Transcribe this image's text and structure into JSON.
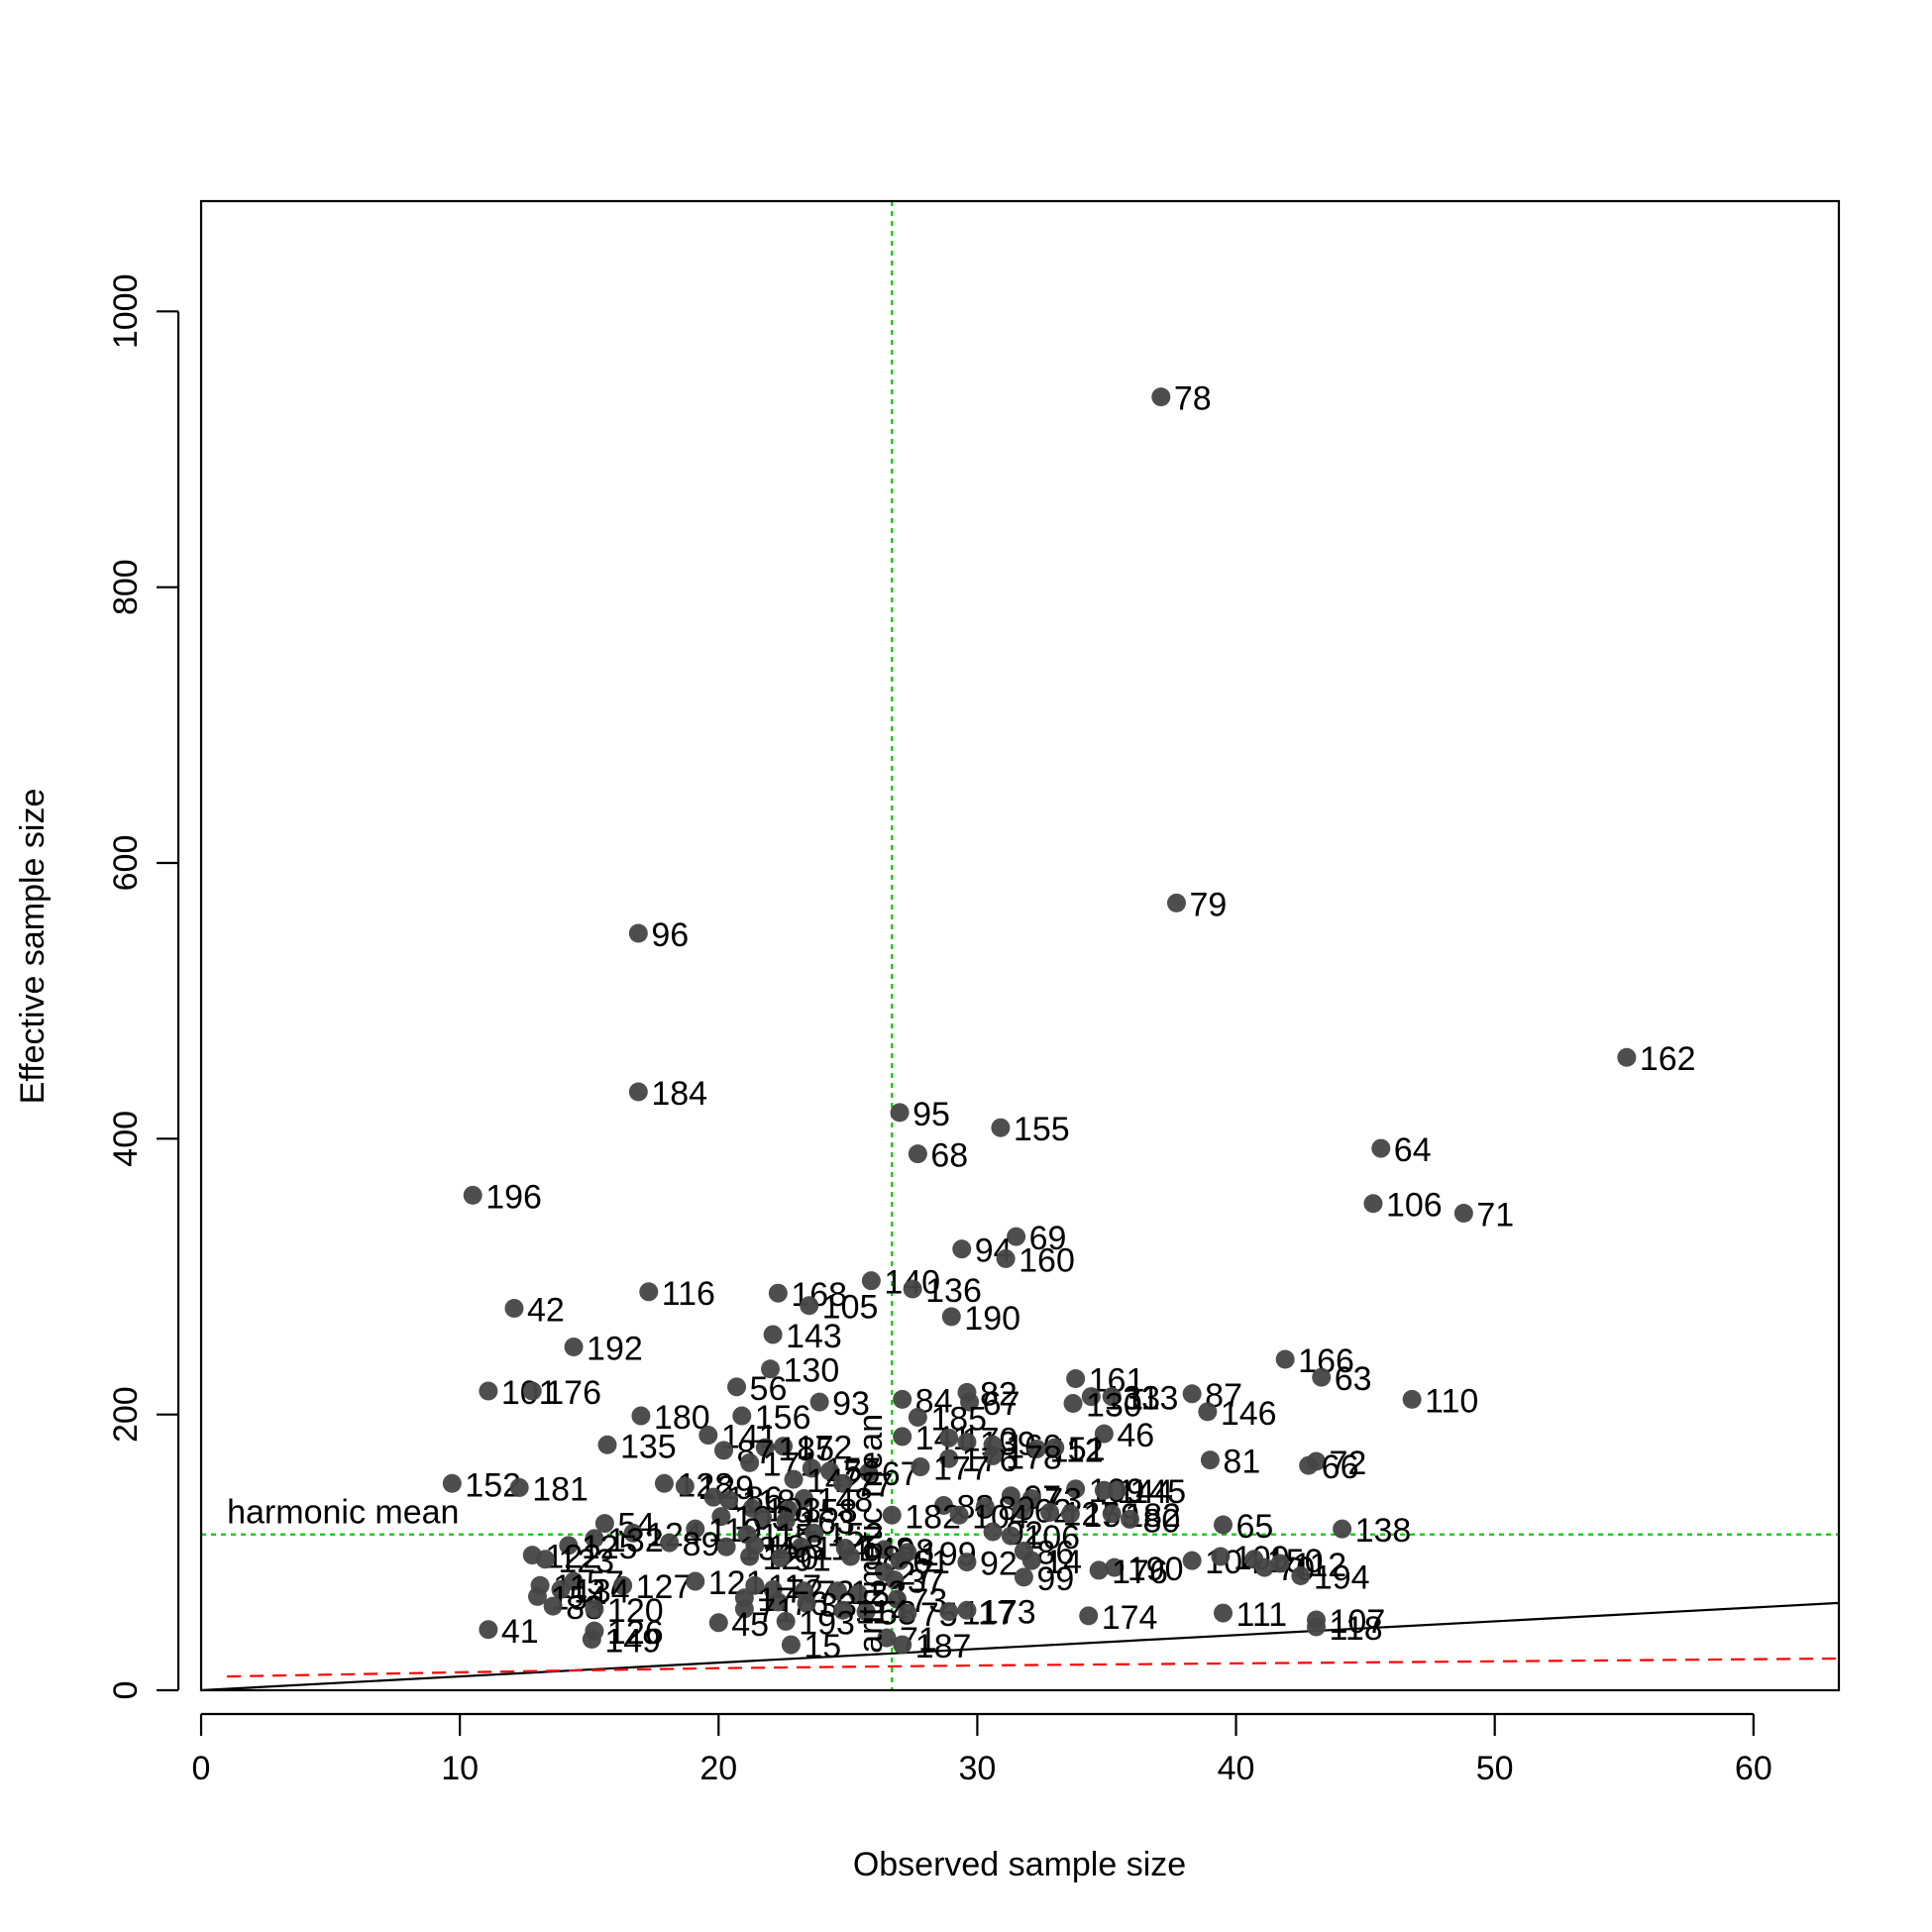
{
  "chart_data": {
    "type": "scatter",
    "title": "",
    "xlabel": "Observed sample size",
    "ylabel": "Effective sample size",
    "xlim": [
      0,
      63.3
    ],
    "ylim": [
      0,
      1080
    ],
    "x_ticks": [
      0,
      10,
      20,
      30,
      40,
      50,
      60
    ],
    "y_ticks": [
      0,
      200,
      400,
      600,
      800,
      1000
    ],
    "grid": false,
    "colors": {
      "points": "#444444",
      "reference": "#00cc00",
      "dashed_curve": "#ff0000",
      "solid_line": "#000000"
    },
    "reference_lines": {
      "arithmetic_mean": {
        "label": "arithmetic mean",
        "x": 26.7
      },
      "harmonic_mean": {
        "label": "harmonic mean",
        "y": 113
      }
    },
    "solid_line": {
      "x": [
        0,
        63.3
      ],
      "y": [
        0,
        63.3
      ]
    },
    "dashed_curve": {
      "x": [
        1,
        10,
        20,
        30,
        40,
        50,
        63.3
      ],
      "y": [
        10,
        13,
        16,
        18,
        19.5,
        21,
        23
      ]
    },
    "points": [
      {
        "x": 37.1,
        "y": 938,
        "label": "78"
      },
      {
        "x": 37.7,
        "y": 571,
        "label": "79"
      },
      {
        "x": 16.9,
        "y": 549,
        "label": "96"
      },
      {
        "x": 55.1,
        "y": 459,
        "label": "162"
      },
      {
        "x": 16.9,
        "y": 434,
        "label": "184"
      },
      {
        "x": 27.0,
        "y": 419,
        "label": "95"
      },
      {
        "x": 30.9,
        "y": 408,
        "label": "155"
      },
      {
        "x": 45.6,
        "y": 393,
        "label": "64"
      },
      {
        "x": 27.7,
        "y": 389,
        "label": "68"
      },
      {
        "x": 10.5,
        "y": 359,
        "label": "196"
      },
      {
        "x": 45.3,
        "y": 353,
        "label": "106"
      },
      {
        "x": 48.8,
        "y": 346,
        "label": "71"
      },
      {
        "x": 31.5,
        "y": 329,
        "label": "69"
      },
      {
        "x": 29.4,
        "y": 320,
        "label": "94"
      },
      {
        "x": 31.1,
        "y": 313,
        "label": "160"
      },
      {
        "x": 25.9,
        "y": 297,
        "label": "140"
      },
      {
        "x": 27.5,
        "y": 291,
        "label": "136"
      },
      {
        "x": 17.3,
        "y": 289,
        "label": "116"
      },
      {
        "x": 22.3,
        "y": 288,
        "label": "168"
      },
      {
        "x": 23.5,
        "y": 279,
        "label": "105"
      },
      {
        "x": 12.1,
        "y": 277,
        "label": "42"
      },
      {
        "x": 29.0,
        "y": 271,
        "label": "190"
      },
      {
        "x": 22.1,
        "y": 258,
        "label": "143"
      },
      {
        "x": 14.4,
        "y": 249,
        "label": "192"
      },
      {
        "x": 41.9,
        "y": 240,
        "label": "166"
      },
      {
        "x": 22.0,
        "y": 233,
        "label": "130"
      },
      {
        "x": 43.3,
        "y": 227,
        "label": "63"
      },
      {
        "x": 33.8,
        "y": 226,
        "label": "161"
      },
      {
        "x": 20.7,
        "y": 220,
        "label": "56"
      },
      {
        "x": 11.1,
        "y": 217,
        "label": "101"
      },
      {
        "x": 12.8,
        "y": 217,
        "label": "176"
      },
      {
        "x": 29.6,
        "y": 216,
        "label": "82"
      },
      {
        "x": 38.3,
        "y": 215,
        "label": "87"
      },
      {
        "x": 34.4,
        "y": 213,
        "label": "133"
      },
      {
        "x": 35.2,
        "y": 213,
        "label": "113"
      },
      {
        "x": 46.8,
        "y": 211,
        "label": "110"
      },
      {
        "x": 27.1,
        "y": 211,
        "label": "84"
      },
      {
        "x": 29.7,
        "y": 209,
        "label": "67"
      },
      {
        "x": 23.9,
        "y": 209,
        "label": "93"
      },
      {
        "x": 33.7,
        "y": 208,
        "label": "130"
      },
      {
        "x": 38.9,
        "y": 202,
        "label": "146"
      },
      {
        "x": 17.0,
        "y": 199,
        "label": "180"
      },
      {
        "x": 20.9,
        "y": 199,
        "label": "156"
      },
      {
        "x": 27.7,
        "y": 198,
        "label": "185"
      },
      {
        "x": 34.9,
        "y": 186,
        "label": "46"
      },
      {
        "x": 19.6,
        "y": 185,
        "label": "141"
      },
      {
        "x": 27.1,
        "y": 184,
        "label": "141"
      },
      {
        "x": 28.9,
        "y": 183,
        "label": "170"
      },
      {
        "x": 29.6,
        "y": 180,
        "label": "139"
      },
      {
        "x": 30.6,
        "y": 178,
        "label": "160"
      },
      {
        "x": 15.7,
        "y": 178,
        "label": "135"
      },
      {
        "x": 22.5,
        "y": 177,
        "label": "172"
      },
      {
        "x": 21.8,
        "y": 176,
        "label": "185"
      },
      {
        "x": 32.3,
        "y": 175,
        "label": "112"
      },
      {
        "x": 33.0,
        "y": 176,
        "label": "51"
      },
      {
        "x": 20.2,
        "y": 174,
        "label": "87"
      },
      {
        "x": 39.0,
        "y": 167,
        "label": "81"
      },
      {
        "x": 43.1,
        "y": 166,
        "label": "72"
      },
      {
        "x": 42.8,
        "y": 163,
        "label": "66"
      },
      {
        "x": 28.9,
        "y": 168,
        "label": "176"
      },
      {
        "x": 30.6,
        "y": 170,
        "label": "178"
      },
      {
        "x": 21.2,
        "y": 165,
        "label": "171"
      },
      {
        "x": 23.6,
        "y": 161,
        "label": "157"
      },
      {
        "x": 24.3,
        "y": 159,
        "label": "76"
      },
      {
        "x": 25.8,
        "y": 158,
        "label": "67"
      },
      {
        "x": 27.8,
        "y": 162,
        "label": "177"
      },
      {
        "x": 9.7,
        "y": 150,
        "label": "152"
      },
      {
        "x": 12.3,
        "y": 147,
        "label": "181"
      },
      {
        "x": 17.9,
        "y": 150,
        "label": "128"
      },
      {
        "x": 18.7,
        "y": 148,
        "label": "129"
      },
      {
        "x": 22.9,
        "y": 153,
        "label": "142"
      },
      {
        "x": 24.8,
        "y": 150,
        "label": "77"
      },
      {
        "x": 33.8,
        "y": 146,
        "label": "109"
      },
      {
        "x": 34.9,
        "y": 145,
        "label": "144"
      },
      {
        "x": 35.4,
        "y": 145,
        "label": "145"
      },
      {
        "x": 31.3,
        "y": 141,
        "label": "97"
      },
      {
        "x": 32.1,
        "y": 139,
        "label": "73"
      },
      {
        "x": 19.8,
        "y": 140,
        "label": "186"
      },
      {
        "x": 20.4,
        "y": 138,
        "label": "118"
      },
      {
        "x": 23.3,
        "y": 139,
        "label": "148"
      },
      {
        "x": 28.7,
        "y": 134,
        "label": "88"
      },
      {
        "x": 30.3,
        "y": 133,
        "label": "89"
      },
      {
        "x": 21.3,
        "y": 132,
        "label": "103"
      },
      {
        "x": 22.7,
        "y": 131,
        "label": "158"
      },
      {
        "x": 31.7,
        "y": 131,
        "label": "62"
      },
      {
        "x": 32.8,
        "y": 129,
        "label": "127"
      },
      {
        "x": 33.6,
        "y": 128,
        "label": "159"
      },
      {
        "x": 35.2,
        "y": 128,
        "label": "182"
      },
      {
        "x": 35.9,
        "y": 124,
        "label": "80"
      },
      {
        "x": 26.7,
        "y": 127,
        "label": "182"
      },
      {
        "x": 29.3,
        "y": 127,
        "label": "104"
      },
      {
        "x": 20.1,
        "y": 126,
        "label": "103"
      },
      {
        "x": 21.7,
        "y": 125,
        "label": "29"
      },
      {
        "x": 22.6,
        "y": 123,
        "label": "163"
      },
      {
        "x": 39.5,
        "y": 120,
        "label": "65"
      },
      {
        "x": 44.1,
        "y": 117,
        "label": "138"
      },
      {
        "x": 15.6,
        "y": 121,
        "label": "54"
      },
      {
        "x": 16.7,
        "y": 114,
        "label": "124"
      },
      {
        "x": 19.1,
        "y": 117,
        "label": "119"
      },
      {
        "x": 21.1,
        "y": 113,
        "label": "115"
      },
      {
        "x": 23.7,
        "y": 114,
        "label": "152"
      },
      {
        "x": 30.6,
        "y": 115,
        "label": "92"
      },
      {
        "x": 31.3,
        "y": 112,
        "label": "106"
      },
      {
        "x": 15.2,
        "y": 110,
        "label": "132"
      },
      {
        "x": 18.1,
        "y": 107,
        "label": "89"
      },
      {
        "x": 14.2,
        "y": 105,
        "label": "125"
      },
      {
        "x": 20.3,
        "y": 104,
        "label": "134"
      },
      {
        "x": 21.4,
        "y": 105,
        "label": "188"
      },
      {
        "x": 23.2,
        "y": 104,
        "label": "114"
      },
      {
        "x": 24.9,
        "y": 103,
        "label": "148"
      },
      {
        "x": 26.4,
        "y": 102,
        "label": "98"
      },
      {
        "x": 27.3,
        "y": 100,
        "label": "199"
      },
      {
        "x": 31.8,
        "y": 101,
        "label": "86"
      },
      {
        "x": 12.8,
        "y": 98,
        "label": "122"
      },
      {
        "x": 13.3,
        "y": 95,
        "label": "123"
      },
      {
        "x": 21.2,
        "y": 97,
        "label": "120"
      },
      {
        "x": 22.4,
        "y": 96,
        "label": "91"
      },
      {
        "x": 25.1,
        "y": 97,
        "label": "98"
      },
      {
        "x": 27.0,
        "y": 94,
        "label": "61"
      },
      {
        "x": 29.6,
        "y": 93,
        "label": "92"
      },
      {
        "x": 32.1,
        "y": 94,
        "label": "14"
      },
      {
        "x": 35.3,
        "y": 89,
        "label": "190"
      },
      {
        "x": 38.3,
        "y": 94,
        "label": "104"
      },
      {
        "x": 39.4,
        "y": 97,
        "label": "109"
      },
      {
        "x": 40.7,
        "y": 95,
        "label": "150"
      },
      {
        "x": 41.1,
        "y": 89,
        "label": "70"
      },
      {
        "x": 41.7,
        "y": 92,
        "label": "112"
      },
      {
        "x": 42.5,
        "y": 83,
        "label": "194"
      },
      {
        "x": 31.8,
        "y": 82,
        "label": "99"
      },
      {
        "x": 34.7,
        "y": 87,
        "label": "176"
      },
      {
        "x": 26.4,
        "y": 86,
        "label": "27"
      },
      {
        "x": 26.8,
        "y": 80,
        "label": "37"
      },
      {
        "x": 14.4,
        "y": 79,
        "label": "57"
      },
      {
        "x": 16.3,
        "y": 76,
        "label": "127"
      },
      {
        "x": 19.1,
        "y": 79,
        "label": "121"
      },
      {
        "x": 13.1,
        "y": 76,
        "label": "11"
      },
      {
        "x": 13.9,
        "y": 73,
        "label": "134"
      },
      {
        "x": 21.4,
        "y": 76,
        "label": "117"
      },
      {
        "x": 22.1,
        "y": 73,
        "label": "72"
      },
      {
        "x": 23.3,
        "y": 72,
        "label": "72"
      },
      {
        "x": 24.6,
        "y": 72,
        "label": "123"
      },
      {
        "x": 25.4,
        "y": 70,
        "label": "51"
      },
      {
        "x": 21.0,
        "y": 67,
        "label": "17"
      },
      {
        "x": 22.3,
        "y": 64,
        "label": "76"
      },
      {
        "x": 23.4,
        "y": 63,
        "label": "33"
      },
      {
        "x": 26.9,
        "y": 66,
        "label": "73"
      },
      {
        "x": 13.0,
        "y": 68,
        "label": "154"
      },
      {
        "x": 13.6,
        "y": 61,
        "label": "83"
      },
      {
        "x": 15.2,
        "y": 59,
        "label": "120"
      },
      {
        "x": 21.0,
        "y": 59,
        "label": "71"
      },
      {
        "x": 24.8,
        "y": 58,
        "label": "114"
      },
      {
        "x": 25.7,
        "y": 57,
        "label": "58"
      },
      {
        "x": 27.3,
        "y": 56,
        "label": "75"
      },
      {
        "x": 28.9,
        "y": 57,
        "label": "117"
      },
      {
        "x": 29.6,
        "y": 58,
        "label": "173"
      },
      {
        "x": 34.3,
        "y": 54,
        "label": "174"
      },
      {
        "x": 39.5,
        "y": 56,
        "label": "111"
      },
      {
        "x": 43.1,
        "y": 51,
        "label": "107"
      },
      {
        "x": 43.1,
        "y": 46,
        "label": "118"
      },
      {
        "x": 20.0,
        "y": 49,
        "label": "45"
      },
      {
        "x": 22.6,
        "y": 50,
        "label": "193"
      },
      {
        "x": 11.1,
        "y": 44,
        "label": "41"
      },
      {
        "x": 15.2,
        "y": 43,
        "label": "126"
      },
      {
        "x": 15.1,
        "y": 37,
        "label": "149"
      },
      {
        "x": 22.8,
        "y": 33,
        "label": "15"
      },
      {
        "x": 26.5,
        "y": 38,
        "label": "71"
      },
      {
        "x": 27.1,
        "y": 33,
        "label": "187"
      }
    ]
  }
}
